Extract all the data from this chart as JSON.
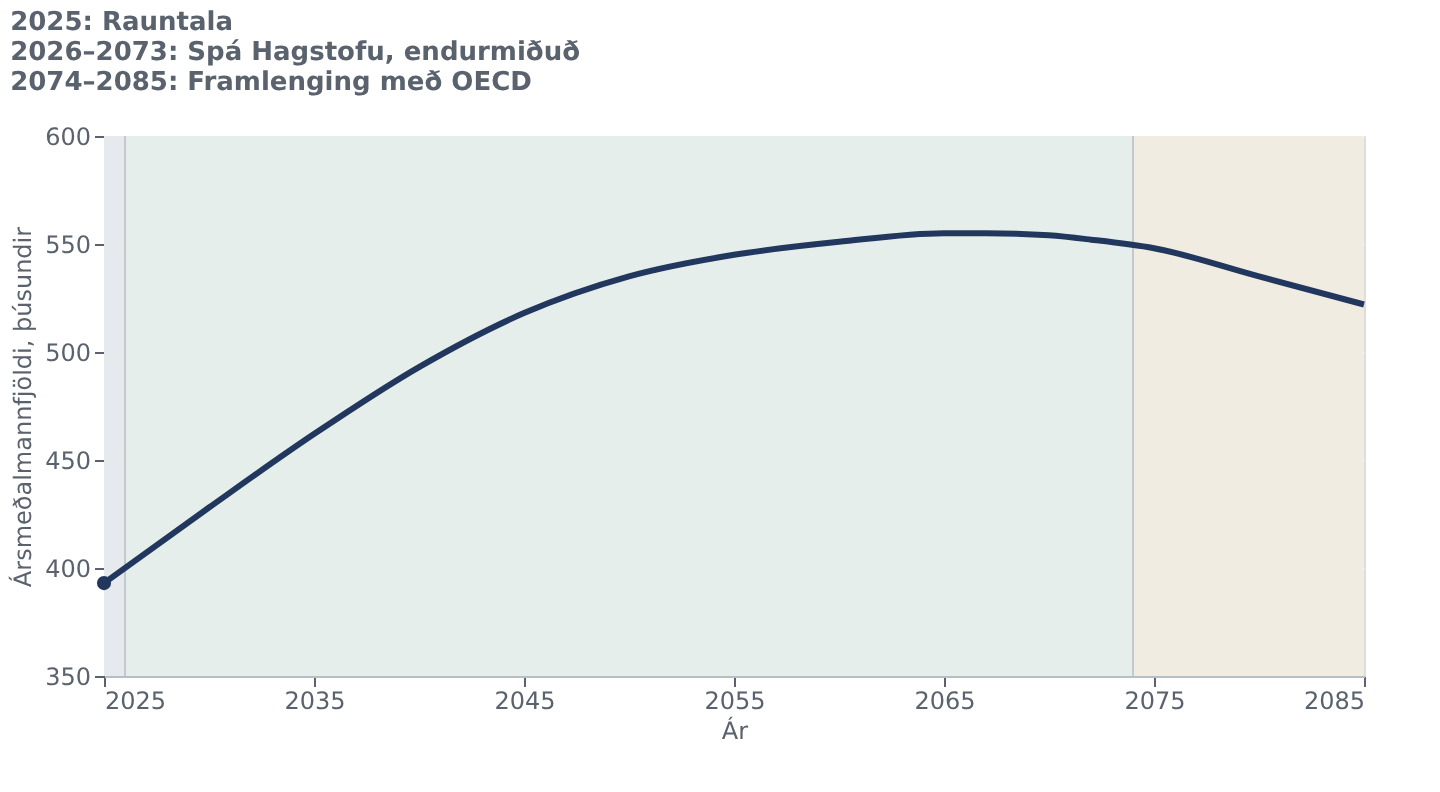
{
  "chart_data": {
    "type": "line",
    "title": [
      "2025: Rauntala",
      "2026–2073: Spá Hagstofu, endurmiðuð",
      "2074–2085: Framlenging með OECD"
    ],
    "xlabel": "Ár",
    "ylabel": "Ársmeðalmannfjöldi, þúsundir",
    "xlim": [
      2025,
      2085
    ],
    "xticks": [
      2025,
      2035,
      2045,
      2055,
      2065,
      2075,
      2085
    ],
    "ylim": [
      350,
      600
    ],
    "yticks": [
      350,
      400,
      450,
      500,
      550,
      600
    ],
    "grid": "y",
    "series": [
      {
        "type": "line",
        "color": "#22375e",
        "marker": "none",
        "line_style": "solid",
        "x": [
          2025,
          2030,
          2035,
          2040,
          2045,
          2050,
          2055,
          2060,
          2065,
          2067,
          2070,
          2072,
          2075,
          2080,
          2085
        ],
        "values": [
          393,
          428,
          462,
          493,
          518,
          535,
          545,
          551,
          555,
          555,
          554,
          552,
          548,
          535,
          522
        ]
      },
      {
        "type": "scatter",
        "color": "#22375e",
        "marker": "circle",
        "x": [
          2025
        ],
        "values": [
          393
        ]
      }
    ],
    "bands": [
      {
        "axis": "x",
        "from": 2025,
        "to": 2026,
        "label": null,
        "color": "#e6eaef"
      },
      {
        "axis": "x",
        "from": 2026,
        "to": 2074,
        "label": null,
        "color": "#e5eeea"
      },
      {
        "axis": "x",
        "from": 2074,
        "to": 2085,
        "label": null,
        "color": "#f0ece2"
      }
    ],
    "ref_lines": [
      {
        "axis": "x",
        "value": 2026,
        "label": null,
        "color": "#c3c8ce",
        "line_style": "solid"
      },
      {
        "axis": "x",
        "value": 2074,
        "label": null,
        "color": "#c3c8ce",
        "line_style": "solid"
      }
    ]
  }
}
